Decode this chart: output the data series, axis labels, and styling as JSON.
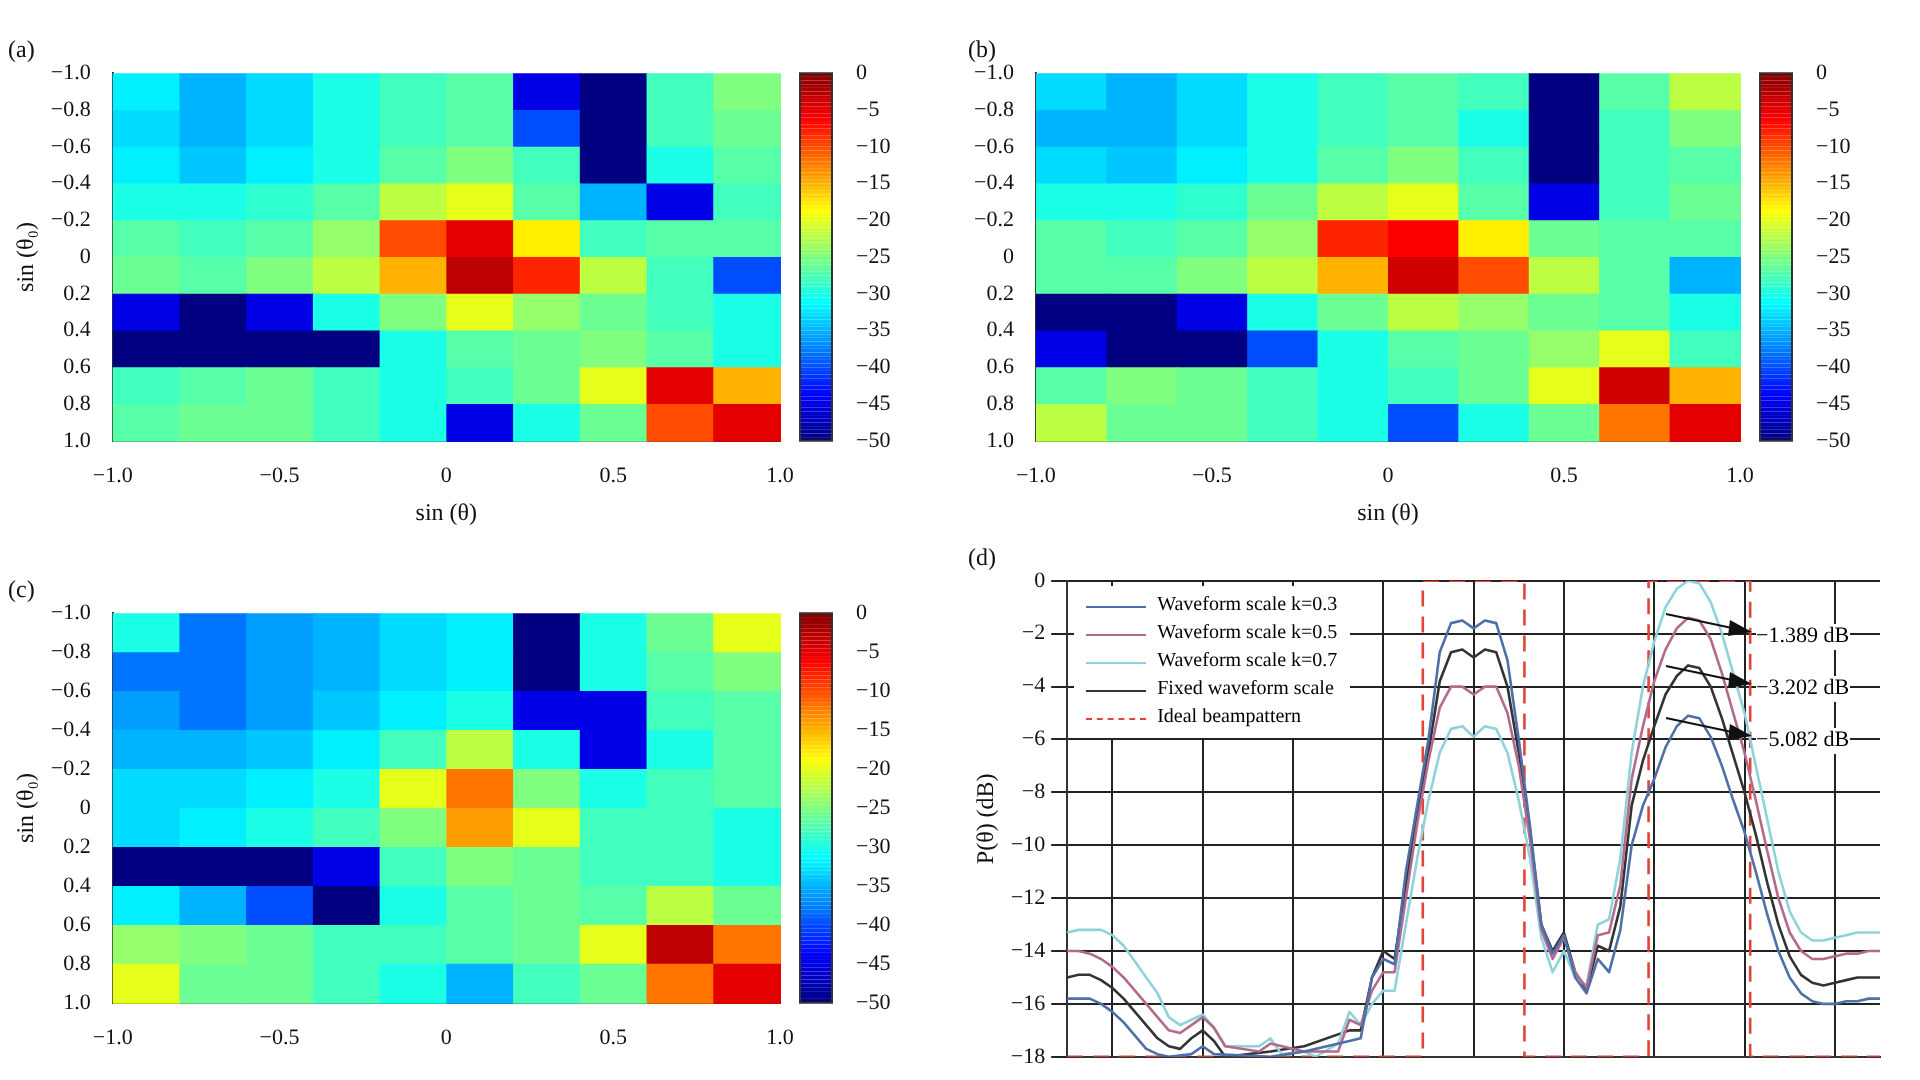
{
  "chart_data": [
    {
      "type": "heatmap",
      "title": "(a)",
      "xlabel": "sin (θ)",
      "ylabel": "sin (θ₀)",
      "x": [
        -0.9,
        -0.7,
        -0.5,
        -0.3,
        -0.1,
        0.1,
        0.3,
        0.5,
        0.7,
        0.9
      ],
      "y": [
        -0.9,
        -0.7,
        -0.5,
        -0.3,
        -0.1,
        0.1,
        0.3,
        0.5,
        0.7,
        0.9
      ],
      "cells": [
        [
          -32,
          -35,
          -33,
          -30,
          -28,
          -27,
          -45,
          -50,
          -28,
          -25
        ],
        [
          -33,
          -35,
          -33,
          -30,
          -28,
          -27,
          -40,
          -50,
          -28,
          -26
        ],
        [
          -32,
          -34,
          -32,
          -30,
          -27,
          -25,
          -28,
          -50,
          -30,
          -27
        ],
        [
          -30,
          -30,
          -29,
          -27,
          -22,
          -20,
          -27,
          -35,
          -45,
          -28
        ],
        [
          -27,
          -28,
          -27,
          -24,
          -10,
          -5,
          -18,
          -28,
          -27,
          -27
        ],
        [
          -26,
          -27,
          -25,
          -22,
          -15,
          -3,
          -8,
          -22,
          -28,
          -40
        ],
        [
          -45,
          -50,
          -45,
          -30,
          -25,
          -20,
          -24,
          -26,
          -28,
          -30
        ],
        [
          -50,
          -50,
          -50,
          -50,
          -30,
          -27,
          -26,
          -25,
          -27,
          -30
        ],
        [
          -28,
          -27,
          -26,
          -28,
          -30,
          -28,
          -26,
          -20,
          -5,
          -15
        ],
        [
          -27,
          -26,
          -26,
          -28,
          -30,
          -45,
          -30,
          -26,
          -10,
          -5
        ]
      ],
      "xlim": [
        -1.0,
        1.0
      ],
      "xticks": [
        {
          "value": -1.0,
          "label": "−1.0"
        },
        {
          "value": -0.5,
          "label": "−0.5"
        },
        {
          "value": 0,
          "label": "0"
        },
        {
          "value": 0.5,
          "label": "0.5"
        },
        {
          "value": 1.0,
          "label": "1.0"
        }
      ],
      "ylim": [
        1.0,
        -1.0
      ],
      "yticks": [
        {
          "value": -1.0,
          "label": "−1.0"
        },
        {
          "value": -0.8,
          "label": "−0.8"
        },
        {
          "value": -0.6,
          "label": "−0.6"
        },
        {
          "value": -0.4,
          "label": "−0.4"
        },
        {
          "value": -0.2,
          "label": "−0.2"
        },
        {
          "value": 0,
          "label": "0"
        },
        0.2,
        0.4,
        0.6,
        0.8,
        {
          "value": 1.0,
          "label": "1.0"
        }
      ],
      "clim": [
        -50,
        0
      ],
      "cticks": [
        {
          "value": 0,
          "label": "0"
        },
        {
          "value": -5,
          "label": "−5"
        },
        {
          "value": -10,
          "label": "−10"
        },
        {
          "value": -15,
          "label": "−15"
        },
        {
          "value": -20,
          "label": "−20"
        },
        {
          "value": -25,
          "label": "−25"
        },
        {
          "value": -30,
          "label": "−30"
        },
        {
          "value": -35,
          "label": "−35"
        },
        {
          "value": -40,
          "label": "−40"
        },
        {
          "value": -45,
          "label": "−45"
        },
        {
          "value": -50,
          "label": "−50"
        }
      ]
    },
    {
      "type": "heatmap",
      "title": "(b)",
      "xlabel": "sin (θ)",
      "x": [
        -0.9,
        -0.7,
        -0.5,
        -0.3,
        -0.1,
        0.1,
        0.3,
        0.5,
        0.7,
        0.9
      ],
      "y": [
        -0.9,
        -0.7,
        -0.5,
        -0.3,
        -0.1,
        0.1,
        0.3,
        0.5,
        0.7,
        0.9
      ],
      "cells": [
        [
          -33,
          -35,
          -33,
          -30,
          -28,
          -27,
          -28,
          -50,
          -27,
          -22
        ],
        [
          -35,
          -35,
          -33,
          -30,
          -28,
          -27,
          -30,
          -50,
          -28,
          -25
        ],
        [
          -33,
          -34,
          -32,
          -30,
          -27,
          -25,
          -28,
          -50,
          -28,
          -27
        ],
        [
          -30,
          -30,
          -29,
          -26,
          -22,
          -20,
          -27,
          -45,
          -28,
          -26
        ],
        [
          -27,
          -28,
          -27,
          -24,
          -8,
          -6,
          -18,
          -26,
          -27,
          -27
        ],
        [
          -27,
          -27,
          -25,
          -22,
          -15,
          -4,
          -10,
          -22,
          -27,
          -35
        ],
        [
          -50,
          -50,
          -45,
          -30,
          -26,
          -22,
          -24,
          -26,
          -27,
          -30
        ],
        [
          -45,
          -50,
          -50,
          -40,
          -30,
          -27,
          -26,
          -24,
          -20,
          -28
        ],
        [
          -27,
          -25,
          -26,
          -28,
          -30,
          -28,
          -26,
          -20,
          -4,
          -15
        ],
        [
          -22,
          -26,
          -26,
          -28,
          -30,
          -40,
          -30,
          -26,
          -12,
          -5
        ]
      ],
      "xlim": [
        -1.0,
        1.0
      ],
      "xticks": [
        {
          "value": -1.0,
          "label": "−1.0"
        },
        {
          "value": -0.5,
          "label": "−0.5"
        },
        {
          "value": 0,
          "label": "0"
        },
        {
          "value": 0.5,
          "label": "0.5"
        },
        {
          "value": 1.0,
          "label": "1.0"
        }
      ],
      "ylim": [
        1.0,
        -1.0
      ],
      "yticks": [
        {
          "value": -1.0,
          "label": "−1.0"
        },
        {
          "value": -0.8,
          "label": "−0.8"
        },
        {
          "value": -0.6,
          "label": "−0.6"
        },
        {
          "value": -0.4,
          "label": "−0.4"
        },
        {
          "value": -0.2,
          "label": "−0.2"
        },
        {
          "value": 0,
          "label": "0"
        },
        0.2,
        0.4,
        0.6,
        0.8,
        {
          "value": 1.0,
          "label": "1.0"
        }
      ],
      "clim": [
        -50,
        0
      ],
      "cticks": [
        {
          "value": 0,
          "label": "0"
        },
        {
          "value": -5,
          "label": "−5"
        },
        {
          "value": -10,
          "label": "−10"
        },
        {
          "value": -15,
          "label": "−15"
        },
        {
          "value": -20,
          "label": "−20"
        },
        {
          "value": -25,
          "label": "−25"
        },
        {
          "value": -30,
          "label": "−30"
        },
        {
          "value": -35,
          "label": "−35"
        },
        {
          "value": -40,
          "label": "−40"
        },
        {
          "value": -45,
          "label": "−45"
        },
        {
          "value": -50,
          "label": "−50"
        }
      ]
    },
    {
      "type": "heatmap",
      "title": "(c)",
      "ylabel": "sin (θ₀)",
      "x": [
        -0.9,
        -0.7,
        -0.5,
        -0.3,
        -0.1,
        0.1,
        0.3,
        0.5,
        0.7,
        0.9
      ],
      "y": [
        -0.9,
        -0.7,
        -0.5,
        -0.3,
        -0.1,
        0.1,
        0.3,
        0.5,
        0.7,
        0.9
      ],
      "cells": [
        [
          -30,
          -38,
          -36,
          -35,
          -33,
          -32,
          -50,
          -30,
          -26,
          -20
        ],
        [
          -38,
          -38,
          -36,
          -35,
          -33,
          -32,
          -50,
          -30,
          -27,
          -25
        ],
        [
          -36,
          -38,
          -36,
          -34,
          -32,
          -30,
          -45,
          -45,
          -28,
          -27
        ],
        [
          -35,
          -35,
          -34,
          -32,
          -28,
          -22,
          -30,
          -45,
          -30,
          -27
        ],
        [
          -33,
          -33,
          -32,
          -30,
          -20,
          -12,
          -25,
          -30,
          -28,
          -27
        ],
        [
          -33,
          -32,
          -30,
          -28,
          -25,
          -14,
          -20,
          -28,
          -28,
          -30
        ],
        [
          -50,
          -50,
          -50,
          -45,
          -28,
          -25,
          -26,
          -28,
          -28,
          -30
        ],
        [
          -32,
          -35,
          -40,
          -50,
          -30,
          -27,
          -26,
          -27,
          -22,
          -26
        ],
        [
          -24,
          -25,
          -26,
          -28,
          -28,
          -27,
          -26,
          -20,
          -3,
          -12
        ],
        [
          -20,
          -26,
          -26,
          -28,
          -30,
          -35,
          -28,
          -26,
          -12,
          -5
        ]
      ],
      "xlim": [
        -1.0,
        1.0
      ],
      "xticks": [
        {
          "value": -1.0,
          "label": "−1.0"
        },
        {
          "value": -0.5,
          "label": "−0.5"
        },
        {
          "value": 0,
          "label": "0"
        },
        {
          "value": 0.5,
          "label": "0.5"
        },
        {
          "value": 1.0,
          "label": "1.0"
        }
      ],
      "ylim": [
        1.0,
        -1.0
      ],
      "yticks": [
        {
          "value": -1.0,
          "label": "−1.0"
        },
        {
          "value": -0.8,
          "label": "−0.8"
        },
        {
          "value": -0.6,
          "label": "−0.6"
        },
        {
          "value": -0.4,
          "label": "−0.4"
        },
        {
          "value": -0.2,
          "label": "−0.2"
        },
        {
          "value": 0,
          "label": "0"
        },
        0.2,
        0.4,
        0.6,
        0.8,
        {
          "value": 1.0,
          "label": "1.0"
        }
      ],
      "clim": [
        -50,
        0
      ],
      "cticks": [
        {
          "value": 0,
          "label": "0"
        },
        {
          "value": -5,
          "label": "−5"
        },
        {
          "value": -10,
          "label": "−10"
        },
        {
          "value": -15,
          "label": "−15"
        },
        {
          "value": -20,
          "label": "−20"
        },
        {
          "value": -25,
          "label": "−25"
        },
        {
          "value": -30,
          "label": "−30"
        },
        {
          "value": -35,
          "label": "−35"
        },
        {
          "value": -40,
          "label": "−40"
        },
        {
          "value": -45,
          "label": "−45"
        },
        {
          "value": -50,
          "label": "−50"
        }
      ]
    },
    {
      "type": "line",
      "title": "(d)",
      "ylabel": "P(θ) (dB)",
      "categories": [
        null,
        null,
        null,
        null,
        null,
        null,
        null,
        null,
        null,
        null,
        null,
        null,
        null,
        null,
        null,
        null,
        null,
        null,
        null,
        null,
        null,
        null,
        null,
        null,
        null,
        null,
        null,
        null,
        null,
        null,
        null,
        null,
        null,
        null,
        null,
        null,
        null,
        null,
        null,
        null,
        null,
        null,
        null,
        null,
        null,
        null,
        null,
        null,
        null,
        null,
        null,
        null,
        null,
        null,
        null,
        null,
        null,
        null,
        null,
        null,
        null,
        null,
        null,
        null,
        null,
        null,
        null,
        null,
        null,
        null,
        null,
        null,
        null
      ],
      "series": [
        {
          "name": "Waveform scale k=0.3",
          "color": "#4f6fa8",
          "values": [
            -15.8,
            -15.8,
            -15.8,
            -16.0,
            -16.3,
            -16.7,
            -17.2,
            -17.7,
            -17.9,
            -18.0,
            null,
            -17.9,
            -17.6,
            -17.9,
            null,
            null,
            null,
            null,
            -18.0,
            null,
            null,
            -17.8,
            null,
            null,
            null,
            -17.4,
            -17.3,
            -15.0,
            -14.3,
            -14.5,
            -11.0,
            -8.5,
            -6.0,
            -2.7,
            -1.6,
            -1.5,
            -1.8,
            -1.5,
            -1.6,
            -3.0,
            -6.0,
            -9.3,
            -13.0,
            -14.1,
            -13.4,
            -15.0,
            -15.6,
            -14.3,
            -14.8,
            -13.2,
            -10.0,
            -8.5,
            -7.5,
            -6.3,
            -5.5,
            -5.1,
            -5.2,
            -5.9,
            -7.0,
            -8.3,
            -9.5,
            -11.0,
            -12.6,
            -14.0,
            -15.0,
            -15.6,
            -15.9,
            -16.0,
            -16.0,
            -15.9,
            -15.9,
            -15.8,
            -15.8
          ]
        },
        {
          "name": "Waveform scale k=0.5",
          "color": "#b46a8c",
          "values": [
            -14.0,
            -14.0,
            -14.1,
            -14.3,
            -14.6,
            -15.0,
            -15.5,
            -16.0,
            -16.5,
            -17.0,
            -17.1,
            -16.8,
            -16.5,
            -16.9,
            -17.6,
            null,
            null,
            -17.8,
            -17.5,
            null,
            null,
            -17.8,
            null,
            null,
            -17.8,
            -16.6,
            -16.8,
            -15.5,
            -14.8,
            -14.8,
            -12.0,
            -9.2,
            -6.8,
            -4.8,
            -4.0,
            -4.0,
            -4.3,
            -4.0,
            -4.0,
            -5.0,
            -7.0,
            -9.8,
            -13.2,
            -14.3,
            -13.5,
            -14.8,
            -15.4,
            -13.4,
            -13.3,
            -11.5,
            -7.5,
            -5.5,
            -3.8,
            -2.6,
            -1.8,
            -1.4,
            -1.5,
            -2.2,
            -3.5,
            -5.0,
            -6.5,
            -8.3,
            -10.2,
            -12.0,
            -13.3,
            -14.0,
            -14.3,
            -14.3,
            -14.2,
            -14.1,
            -14.1,
            -14.0,
            -14.0
          ]
        },
        {
          "name": "Waveform scale k=0.7",
          "color": "#8ed3dc",
          "values": [
            -13.3,
            -13.2,
            -13.2,
            -13.2,
            -13.4,
            -13.8,
            -14.4,
            -15.0,
            -15.6,
            -16.5,
            -16.8,
            -16.6,
            -16.4,
            -16.9,
            -17.6,
            null,
            null,
            -17.6,
            -17.3,
            -17.9,
            null,
            -17.8,
            -18.0,
            null,
            -17.5,
            -16.3,
            -16.8,
            -16.0,
            -15.5,
            -15.5,
            -13.0,
            -10.5,
            -8.3,
            -6.5,
            -5.6,
            -5.5,
            -5.9,
            -5.5,
            -5.6,
            -6.5,
            -8.3,
            -10.5,
            -13.5,
            -14.8,
            -14.0,
            -15.0,
            -15.3,
            -13.0,
            -12.8,
            -10.5,
            -6.5,
            -4.0,
            -2.3,
            -1.0,
            -0.3,
            0,
            -0.1,
            -0.8,
            -2.0,
            -3.5,
            -5.0,
            -7.0,
            -9.0,
            -11.0,
            -12.5,
            -13.3,
            -13.6,
            -13.6,
            -13.5,
            -13.4,
            -13.3,
            -13.3,
            -13.3
          ]
        },
        {
          "name": "Fixed waveform scale",
          "color": "#333333",
          "values": [
            -15.0,
            -14.9,
            -14.9,
            -15.1,
            -15.4,
            -15.8,
            -16.3,
            -16.8,
            -17.3,
            -17.6,
            -17.7,
            -17.3,
            -17.0,
            -17.4,
            -18.0,
            null,
            null,
            null,
            -17.8,
            null,
            null,
            -17.6,
            null,
            null,
            null,
            -17.0,
            -17.0,
            -15.0,
            -14.0,
            -14.3,
            -11.5,
            -8.8,
            -6.5,
            -3.8,
            -2.7,
            -2.6,
            -2.9,
            -2.6,
            -2.7,
            -4.0,
            -6.5,
            -9.5,
            -13.0,
            -14.0,
            -13.3,
            -14.8,
            -15.5,
            -13.8,
            -14.0,
            -12.3,
            -8.5,
            -6.8,
            -5.5,
            -4.3,
            -3.6,
            -3.2,
            -3.3,
            -4.0,
            -5.2,
            -6.6,
            -8.0,
            -9.6,
            -11.4,
            -13.0,
            -14.2,
            -14.9,
            -15.2,
            -15.3,
            -15.2,
            -15.1,
            -15.0,
            -15.0,
            -15.0
          ]
        },
        {
          "name": "Ideal beampattern",
          "type": "step",
          "color": "#e0453a",
          "line_style": "dashed",
          "values": [
            -18,
            -18,
            -18,
            -18,
            -18,
            -18,
            -18,
            -18,
            -18,
            -18,
            -18,
            -18,
            -18,
            -18,
            -18,
            -18,
            -18,
            -18,
            -18,
            -18,
            -18,
            -18,
            -18,
            -18,
            -18,
            -18,
            -18,
            -18,
            -18,
            -18,
            -18,
            -18,
            0,
            0,
            0,
            0,
            0,
            0,
            0,
            0,
            0,
            -18,
            -18,
            -18,
            -18,
            -18,
            -18,
            -18,
            -18,
            -18,
            -18,
            -18,
            0,
            0,
            0,
            0,
            0,
            0,
            0,
            0,
            0,
            -18,
            -18,
            -18,
            -18,
            -18,
            -18,
            -18,
            -18,
            -18,
            -18,
            -18,
            -18
          ]
        }
      ],
      "ylim": [
        -18,
        0
      ],
      "yticks": [
        0,
        {
          "value": -2,
          "label": "−2"
        },
        {
          "value": -4,
          "label": "−4"
        },
        {
          "value": -6,
          "label": "−6"
        },
        {
          "value": -8,
          "label": "−8"
        },
        {
          "value": -10,
          "label": "−10"
        },
        {
          "value": -12,
          "label": "−12"
        },
        {
          "value": -14,
          "label": "−14"
        },
        {
          "value": -16,
          "label": "−16"
        },
        {
          "value": -18,
          "label": "−18"
        }
      ],
      "grid": true,
      "legend": "top left",
      "marker": "none",
      "line_style": "solid",
      "tick_labels": "y",
      "annotations": [
        "−1.389 dB",
        "−3.202 dB",
        "−5.082 dB"
      ]
    }
  ]
}
